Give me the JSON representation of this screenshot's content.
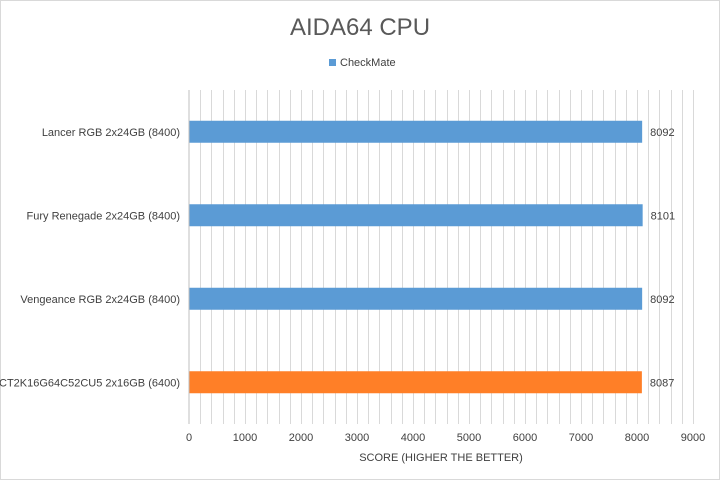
{
  "chart_data": {
    "type": "bar",
    "orientation": "horizontal",
    "title": "AIDA64 CPU",
    "xlabel": "SCORE (HIGHER THE BETTER)",
    "ylabel": "",
    "xlim": [
      0,
      9000
    ],
    "x_ticks": [
      0,
      1000,
      2000,
      3000,
      4000,
      5000,
      6000,
      7000,
      8000,
      9000
    ],
    "grid": "vertical minor gridlines",
    "legend": {
      "position": "top",
      "entries": [
        "CheckMate"
      ]
    },
    "categories": [
      "Lancer RGB 2x24GB (8400)",
      "Fury Renegade 2x24GB (8400)",
      "Vengeance RGB 2x24GB (8400)",
      "CT2K16G64C52CU5 2x16GB (6400)"
    ],
    "series": [
      {
        "name": "CheckMate",
        "values": [
          8092,
          8101,
          8092,
          8087
        ]
      }
    ],
    "bar_colors": [
      "#5b9bd5",
      "#5b9bd5",
      "#5b9bd5",
      "#ff7f27"
    ],
    "data_labels": true
  }
}
